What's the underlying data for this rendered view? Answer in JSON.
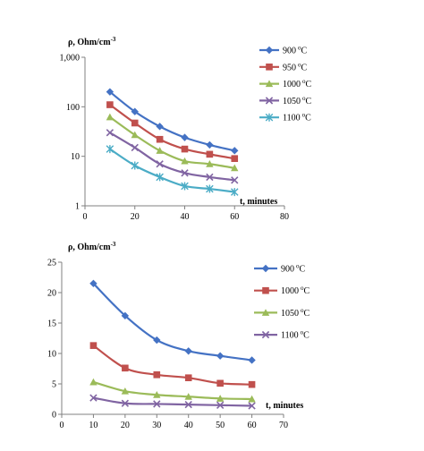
{
  "chart_data": [
    {
      "type": "line",
      "scale": "log",
      "ylabel": "ρ, Ohm/cm",
      "ylabel_sup": "-3",
      "xlabel": "t, minutes",
      "xlim": [
        0,
        80
      ],
      "ylim": [
        1,
        1000
      ],
      "x_ticks": [
        "0",
        "20",
        "40",
        "60",
        "80"
      ],
      "y_ticks": [
        "1",
        "10",
        "100",
        "1,000"
      ],
      "grid": false,
      "legend_position": "right",
      "x": [
        10,
        20,
        30,
        40,
        50,
        60
      ],
      "series": [
        {
          "name": "900",
          "unit": "C",
          "deg": "o",
          "color": "#4472C4",
          "marker": "diamond",
          "values": [
            200,
            80,
            40,
            24,
            17,
            13
          ]
        },
        {
          "name": "950",
          "unit": "C",
          "deg": "o",
          "color": "#C0504D",
          "marker": "square",
          "values": [
            110,
            47,
            22,
            14,
            11,
            9
          ]
        },
        {
          "name": "1000",
          "unit": "C",
          "deg": "o",
          "color": "#9BBB59",
          "marker": "triangle",
          "values": [
            62,
            27,
            13,
            8,
            7,
            5.8
          ]
        },
        {
          "name": "1050",
          "unit": "C",
          "deg": "o",
          "color": "#8064A2",
          "marker": "x",
          "values": [
            30,
            15,
            7,
            4.6,
            3.8,
            3.3
          ]
        },
        {
          "name": "1100",
          "unit": "C",
          "deg": "o",
          "color": "#4BACC6",
          "marker": "star",
          "values": [
            14,
            6.5,
            3.8,
            2.5,
            2.2,
            1.9
          ]
        }
      ]
    },
    {
      "type": "line",
      "scale": "linear",
      "ylabel": "ρ, Ohm/cm",
      "ylabel_sup": "-3",
      "xlabel": "t, minutes",
      "xlim": [
        0,
        70
      ],
      "ylim": [
        0,
        25
      ],
      "x_ticks": [
        "0",
        "10",
        "20",
        "30",
        "40",
        "50",
        "60",
        "70"
      ],
      "y_ticks": [
        "0",
        "5",
        "10",
        "15",
        "20",
        "25"
      ],
      "grid": false,
      "legend_position": "right",
      "x": [
        10,
        20,
        30,
        40,
        50,
        60
      ],
      "series": [
        {
          "name": "900",
          "unit": "C",
          "deg": "o",
          "color": "#4472C4",
          "marker": "diamond",
          "values": [
            21.5,
            16.2,
            12.2,
            10.4,
            9.6,
            8.9
          ]
        },
        {
          "name": "1000",
          "unit": "C",
          "deg": "o",
          "color": "#C0504D",
          "marker": "square",
          "values": [
            11.3,
            7.6,
            6.5,
            6.0,
            5.1,
            4.9
          ]
        },
        {
          "name": "1050",
          "unit": "C",
          "deg": "o",
          "color": "#9BBB59",
          "marker": "triangle",
          "values": [
            5.3,
            3.8,
            3.2,
            2.9,
            2.6,
            2.5
          ]
        },
        {
          "name": "1100",
          "unit": "C",
          "deg": "o",
          "color": "#8064A2",
          "marker": "x",
          "values": [
            2.7,
            1.8,
            1.7,
            1.6,
            1.5,
            1.4
          ]
        }
      ]
    }
  ]
}
